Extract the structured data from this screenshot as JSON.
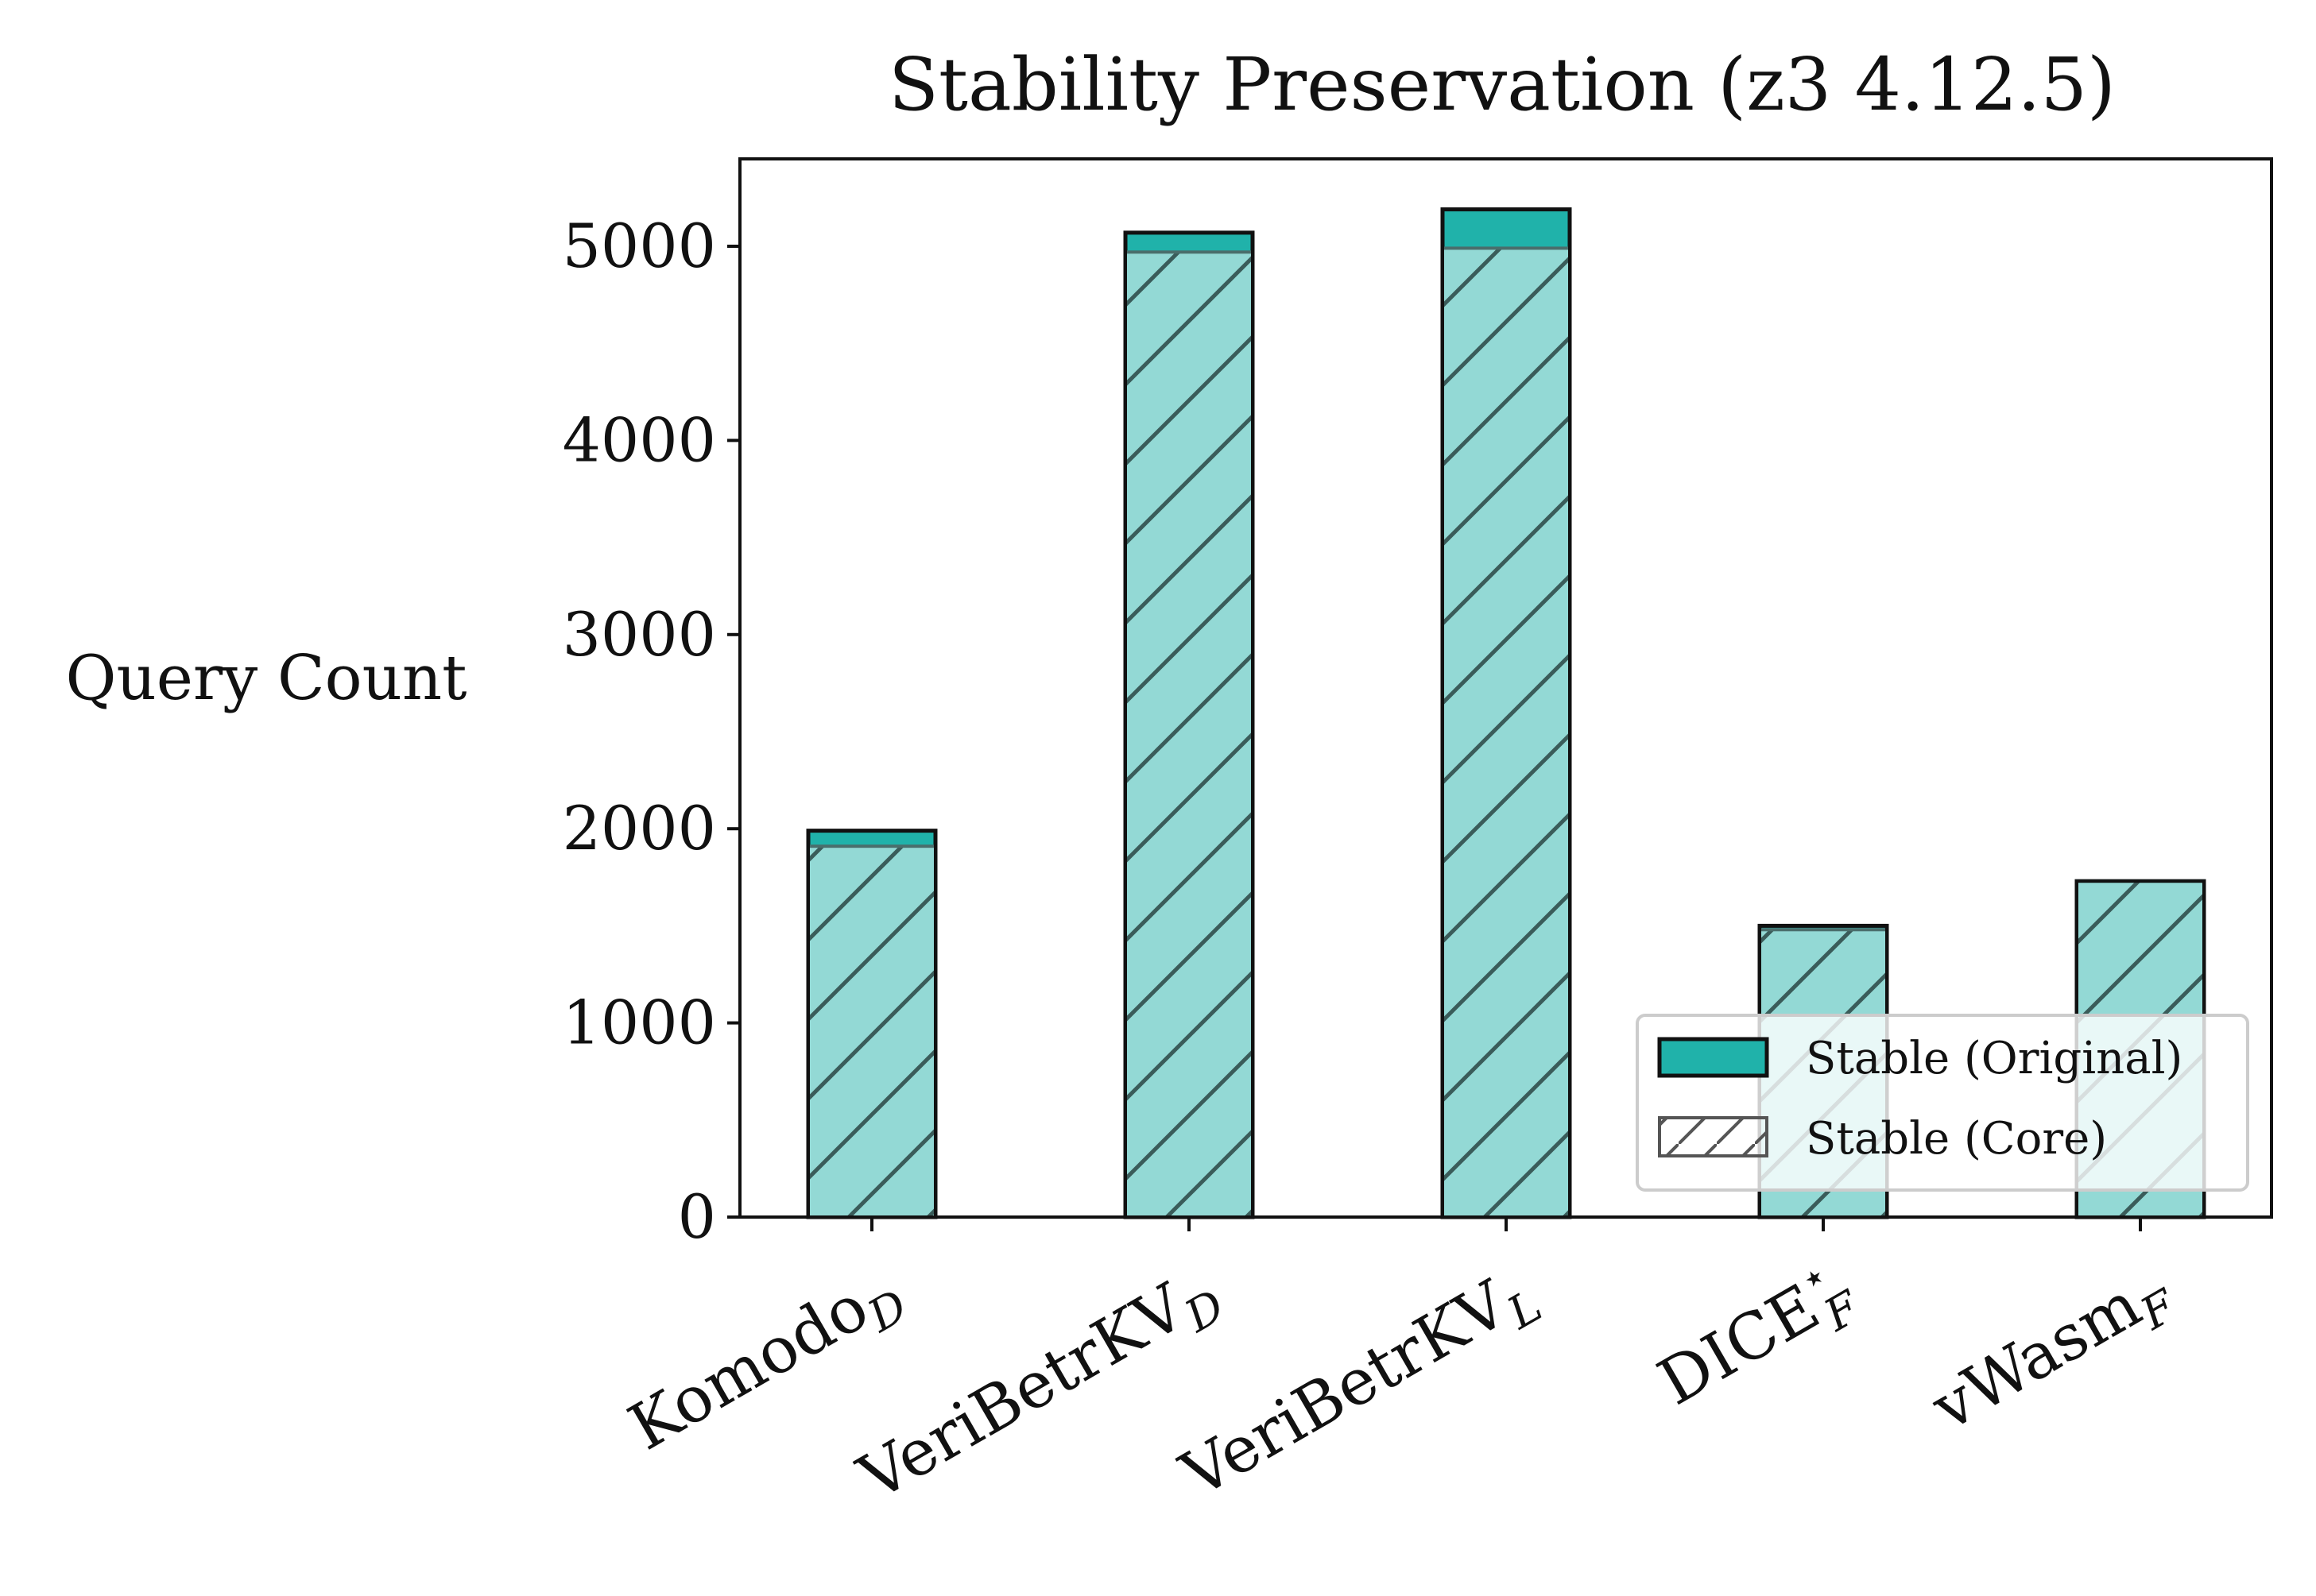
{
  "chart_data": {
    "type": "bar",
    "title": "Stability Preservation (z3 4.12.5)",
    "xlabel": "",
    "ylabel": "Query Count",
    "ylim": [
      0,
      5450
    ],
    "yticks": [
      0,
      1000,
      2000,
      3000,
      4000,
      5000
    ],
    "grid": false,
    "legend_position": "lower-right",
    "categories": [
      {
        "base": "Komodo",
        "sub": "D",
        "sup": ""
      },
      {
        "base": "VeriBetrKV",
        "sub": "D",
        "sup": ""
      },
      {
        "base": "VeriBetrKV",
        "sub": "L",
        "sup": ""
      },
      {
        "base": "DICE",
        "sub": "F",
        "sup": "⋆"
      },
      {
        "base": "vWasm",
        "sub": "F",
        "sup": ""
      }
    ],
    "series": [
      {
        "name": "Stable (Original)",
        "style": "solid",
        "values": [
          1990,
          5070,
          5190,
          1500,
          1730
        ]
      },
      {
        "name": "Stable (Core)",
        "style": "hatched",
        "values": [
          1910,
          4970,
          4990,
          1480,
          1730
        ]
      }
    ],
    "colors": {
      "original": "#20b2aa",
      "core_fill": "#93d9d5",
      "hatch": "#3a5c5a",
      "edge": "#111111"
    }
  }
}
